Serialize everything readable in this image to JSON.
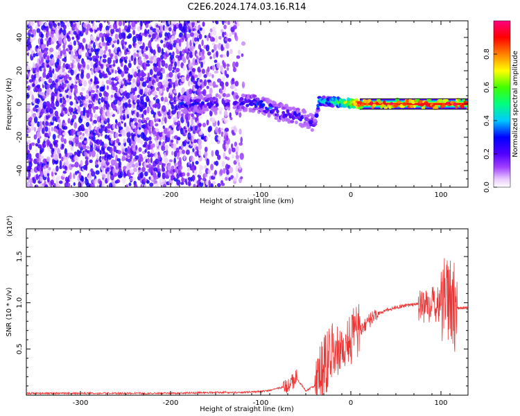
{
  "title": "C2E6.2024.174.03.16.R14",
  "chart_data": [
    {
      "type": "heatmap",
      "title": "C2E6.2024.174.03.16.R14",
      "xlabel": "Height of straight line (km)",
      "ylabel": "Frequency (Hz)",
      "xlim": [
        -360,
        130
      ],
      "ylim": [
        -50,
        50
      ],
      "x_ticks": [
        -300,
        -200,
        -100,
        0,
        100
      ],
      "x_tick_labels": [
        "-300",
        "-200",
        "-100",
        "0",
        "100"
      ],
      "y_ticks": [
        -40,
        -20,
        0,
        20,
        40
      ],
      "y_tick_labels": [
        "-40",
        "-20",
        "0",
        "20",
        "40"
      ],
      "colorbar": {
        "label": "Normalized spectral amplitude",
        "range": [
          0,
          1
        ],
        "ticks": [
          0.0,
          0.2,
          0.4,
          0.6,
          0.8
        ],
        "tick_labels": [
          "0.0",
          "0.2",
          "0.4",
          "0.6",
          "0.8"
        ],
        "colors": [
          "#ffffff",
          "#e8c8ff",
          "#a040ff",
          "#5000ff",
          "#0000ff",
          "#00c8ff",
          "#00ff80",
          "#40ff00",
          "#ffff00",
          "#ff8000",
          "#ff0000",
          "#ff0080"
        ]
      },
      "noise_region": {
        "x_range": [
          -360,
          -115
        ],
        "freq_range": [
          -50,
          50
        ],
        "amplitude_range": [
          0.05,
          0.35
        ]
      },
      "signal_ridge": [
        {
          "x": -190,
          "freq": 0,
          "amp": 0.3
        },
        {
          "x": -160,
          "freq": 0,
          "amp": 0.3
        },
        {
          "x": -120,
          "freq": 1,
          "amp": 0.3
        },
        {
          "x": -100,
          "freq": 0,
          "amp": 0.35
        },
        {
          "x": -80,
          "freq": -5,
          "amp": 0.35
        },
        {
          "x": -60,
          "freq": -7,
          "amp": 0.3
        },
        {
          "x": -40,
          "freq": -12,
          "amp": 0.25
        },
        {
          "x": -35,
          "freq": 2,
          "amp": 0.45
        },
        {
          "x": -10,
          "freq": 1,
          "amp": 0.6
        },
        {
          "x": 10,
          "freq": 0,
          "amp": 0.9
        },
        {
          "x": 60,
          "freq": 0,
          "amp": 0.95
        },
        {
          "x": 110,
          "freq": 0,
          "amp": 0.95
        },
        {
          "x": 130,
          "freq": 0,
          "amp": 0.95
        }
      ]
    },
    {
      "type": "line",
      "xlabel": "Height of straight line (km)",
      "ylabel": "SNR (10 * v/v)",
      "y_multiplier": "(x10⁴)",
      "xlim": [
        -360,
        130
      ],
      "ylim": [
        0,
        1.8
      ],
      "x_ticks": [
        -300,
        -200,
        -100,
        0,
        100
      ],
      "x_tick_labels": [
        "-300",
        "-200",
        "-100",
        "0",
        "100"
      ],
      "y_ticks": [
        0.5,
        1.0,
        1.5
      ],
      "y_tick_labels": [
        "0.5",
        "1.0",
        "1.5"
      ],
      "series": [
        {
          "color": "#ee3333",
          "x": [
            -360,
            -300,
            -200,
            -150,
            -120,
            -100,
            -90,
            -70,
            -60,
            -50,
            -40,
            -30,
            -20,
            -10,
            0,
            10,
            20,
            30,
            40,
            50,
            60,
            70,
            80,
            90,
            100,
            105,
            110,
            115,
            120,
            130
          ],
          "y": [
            0.02,
            0.02,
            0.02,
            0.03,
            0.03,
            0.04,
            0.05,
            0.1,
            0.18,
            0.05,
            0.1,
            0.3,
            0.45,
            0.55,
            0.62,
            0.7,
            0.8,
            0.88,
            0.92,
            0.95,
            0.97,
            0.98,
            0.98,
            0.98,
            0.97,
            1.05,
            1.1,
            0.95,
            0.94,
            0.94
          ]
        }
      ]
    }
  ]
}
